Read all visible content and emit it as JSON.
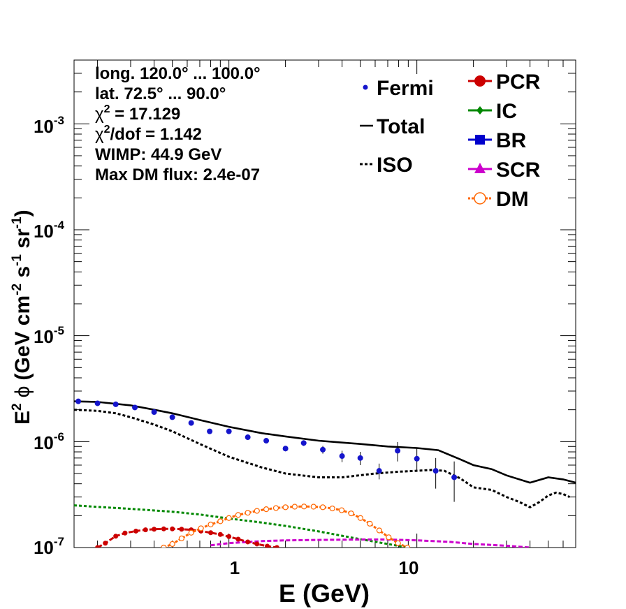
{
  "chart_data": {
    "type": "line",
    "xscale": "log",
    "yscale": "log",
    "xlim": [
      0.15,
      70
    ],
    "ylim": [
      1e-07,
      0.004
    ],
    "xlabel": "E (GeV)",
    "ylabel": {
      "base": "E",
      "base_sup": "2",
      "phi": "ϕ",
      "unit_open": "(GeV cm",
      "unit_sup1": "-2",
      "unit_s": " s",
      "unit_sup2": "-1",
      "unit_sr": " sr",
      "unit_sup3": "-1",
      "unit_close": ")"
    },
    "x_ticks": [
      {
        "value": 1,
        "label": "1"
      },
      {
        "value": 10,
        "label": "10"
      }
    ],
    "y_ticks": [
      {
        "value": 1e-07,
        "mantissa": "10",
        "exponent": "-7"
      },
      {
        "value": 1e-06,
        "mantissa": "10",
        "exponent": "-6"
      },
      {
        "value": 1e-05,
        "mantissa": "10",
        "exponent": "-5"
      },
      {
        "value": 0.0001,
        "mantissa": "10",
        "exponent": "-4"
      },
      {
        "value": 0.001,
        "mantissa": "10",
        "exponent": "-3"
      }
    ],
    "info": [
      {
        "text": "long. 120.0° ... 100.0°"
      },
      {
        "text": "lat. 72.5° ... 90.0°"
      },
      {
        "text": " = 17.129",
        "chi": "χ",
        "sup": "2"
      },
      {
        "text": "/dof = 1.142",
        "chi": "χ",
        "sup": "2"
      },
      {
        "text": "WIMP: 44.9 GeV"
      },
      {
        "text": "Max DM flux: 2.4e-07"
      }
    ],
    "legend": {
      "left": [
        {
          "key": "fermi",
          "label": "Fermi",
          "color": "#1515cc",
          "style": "point"
        },
        {
          "key": "total",
          "label": "Total",
          "color": "#000000",
          "style": "solid"
        },
        {
          "key": "iso",
          "label": "ISO",
          "color": "#000000",
          "style": "dotted"
        }
      ],
      "right": [
        {
          "key": "pcr",
          "label": "PCR",
          "color": "#cc0000",
          "marker": "circle"
        },
        {
          "key": "ic",
          "label": "IC",
          "color": "#008800",
          "marker": "diamond"
        },
        {
          "key": "br",
          "label": "BR",
          "color": "#0000cc",
          "marker": "square"
        },
        {
          "key": "scr",
          "label": "SCR",
          "color": "#cc00cc",
          "marker": "triangle"
        },
        {
          "key": "dm",
          "label": "DM",
          "color": "#ff6600",
          "marker": "open-circle"
        }
      ]
    },
    "fermi": {
      "name": "Fermi",
      "color": "#1515cc",
      "x": [
        0.158,
        0.2,
        0.25,
        0.316,
        0.4,
        0.5,
        0.63,
        0.79,
        1.0,
        1.26,
        1.58,
        2.0,
        2.5,
        3.16,
        4.0,
        5.0,
        6.3,
        7.9,
        10.0,
        12.6,
        15.8,
        20.0,
        25.1,
        31.6,
        39.8,
        50.1,
        63.1
      ],
      "y": [
        2.4e-06,
        2.3e-06,
        2.25e-06,
        2.1e-06,
        1.9e-06,
        1.7e-06,
        1.5e-06,
        1.25e-06,
        1.25e-06,
        1.1e-06,
        1.02e-06,
        8.6e-07,
        9.7e-07,
        8.4e-07,
        7.3e-07,
        7e-07,
        5.3e-07,
        8.2e-07,
        6.9e-07,
        5.3e-07,
        4.6e-07,
        null,
        null,
        null,
        null,
        null,
        null
      ],
      "yerr": [
        5e-08,
        5e-08,
        5e-08,
        5e-08,
        5e-08,
        5e-08,
        4e-08,
        4e-08,
        4e-08,
        4e-08,
        4e-08,
        5e-08,
        6e-08,
        7e-08,
        9e-08,
        1e-07,
        9e-08,
        1.7e-07,
        1.7e-07,
        1.7e-07,
        1.9e-07,
        null,
        null,
        null,
        null,
        null,
        null
      ]
    },
    "series": [
      {
        "key": "total",
        "name": "Total",
        "color": "#000000",
        "dash": "",
        "width": 2.6,
        "x": [
          0.15,
          0.2,
          0.3,
          0.4,
          0.5,
          0.7,
          1.0,
          1.5,
          2.0,
          3.0,
          4.0,
          5.0,
          7.0,
          10.0,
          13.0,
          17.0,
          20.0,
          25.0,
          30.0,
          40.0,
          50.0,
          60.0,
          70.0
        ],
        "y": [
          2.4e-06,
          2.37e-06,
          2.2e-06,
          2e-06,
          1.85e-06,
          1.6e-06,
          1.38e-06,
          1.2e-06,
          1.12e-06,
          1.02e-06,
          9.8e-07,
          9.5e-07,
          9e-07,
          8.7e-07,
          8.3e-07,
          6.8e-07,
          6e-07,
          5.5e-07,
          4.8e-07,
          4.1e-07,
          4.6e-07,
          4.4e-07,
          4.1e-07
        ]
      },
      {
        "key": "iso",
        "name": "ISO",
        "color": "#000000",
        "dash": "4,3",
        "width": 3,
        "x": [
          0.15,
          0.2,
          0.25,
          0.3,
          0.4,
          0.5,
          0.7,
          1.0,
          1.5,
          2.0,
          3.0,
          4.0,
          6.0,
          8.0,
          10.0,
          12.0,
          14.0,
          17.0,
          20.0,
          25.0,
          30.0,
          35.0,
          40.0,
          45.0,
          50.0,
          55.0,
          60.0,
          65.0
        ],
        "y": [
          2e-06,
          1.95e-06,
          1.85e-06,
          1.7e-06,
          1.45e-06,
          1.25e-06,
          9.5e-07,
          7.2e-07,
          5.7e-07,
          5e-07,
          4.6e-07,
          4.6e-07,
          5e-07,
          5.2e-07,
          5.3e-07,
          5.4e-07,
          5.3e-07,
          4.5e-07,
          3.7e-07,
          3.5e-07,
          3e-07,
          2.7e-07,
          2.4e-07,
          2.7e-07,
          3.1e-07,
          3.3e-07,
          3.2e-07,
          3e-07
        ]
      },
      {
        "key": "ic",
        "name": "IC",
        "color": "#008800",
        "dash": "4,3",
        "width": 3,
        "x": [
          0.15,
          0.2,
          0.3,
          0.5,
          0.7,
          1.0,
          1.5,
          2.0,
          3.0,
          5.0,
          7.0,
          9.0
        ],
        "y": [
          2.5e-07,
          2.42e-07,
          2.32e-07,
          2.18e-07,
          2.05e-07,
          1.88e-07,
          1.72e-07,
          1.6e-07,
          1.42e-07,
          1.2e-07,
          1.08e-07,
          1e-07
        ]
      },
      {
        "key": "scr",
        "name": "SCR",
        "color": "#cc00cc",
        "dash": "6,3",
        "width": 3,
        "x": [
          0.8,
          1.0,
          1.5,
          2.0,
          3.0,
          5.0,
          7.0,
          10.0,
          15.0,
          20.0,
          30.0,
          40.0
        ],
        "y": [
          1.05e-07,
          1.1e-07,
          1.15e-07,
          1.17e-07,
          1.18e-07,
          1.19e-07,
          1.19e-07,
          1.17e-07,
          1.13e-07,
          1.08e-07,
          1.04e-07,
          1e-07
        ]
      },
      {
        "key": "pcr",
        "name": "PCR",
        "color": "#cc0000",
        "dash": "7,3",
        "width": 3,
        "marker": "circle",
        "markerEvery": 1,
        "x": [
          0.2,
          0.22,
          0.25,
          0.28,
          0.32,
          0.36,
          0.4,
          0.45,
          0.5,
          0.56,
          0.63,
          0.71,
          0.8,
          0.9,
          1.0,
          1.12,
          1.26,
          1.41,
          1.6,
          1.8
        ],
        "y": [
          1e-07,
          1.1e-07,
          1.28e-07,
          1.37e-07,
          1.43e-07,
          1.47e-07,
          1.49e-07,
          1.5e-07,
          1.5e-07,
          1.49e-07,
          1.47e-07,
          1.43e-07,
          1.38e-07,
          1.33e-07,
          1.27e-07,
          1.2e-07,
          1.13e-07,
          1.08e-07,
          1.03e-07,
          1e-07
        ]
      },
      {
        "key": "dm",
        "name": "DM",
        "color": "#ff6600",
        "dash": "4,2",
        "width": 3,
        "marker": "open-circle",
        "markerEvery": 1,
        "x": [
          0.45,
          0.5,
          0.56,
          0.63,
          0.71,
          0.8,
          0.9,
          1.0,
          1.12,
          1.26,
          1.41,
          1.58,
          1.78,
          2.0,
          2.24,
          2.51,
          2.82,
          3.16,
          3.55,
          3.98,
          4.47,
          5.01,
          5.62,
          6.31,
          7.08,
          7.94,
          8.91
        ],
        "y": [
          1e-07,
          1.08e-07,
          1.22e-07,
          1.38e-07,
          1.52e-07,
          1.65e-07,
          1.77e-07,
          1.9e-07,
          2.03e-07,
          2.13e-07,
          2.22e-07,
          2.3e-07,
          2.36e-07,
          2.4e-07,
          2.43e-07,
          2.44e-07,
          2.43e-07,
          2.4e-07,
          2.34e-07,
          2.25e-07,
          2.1e-07,
          1.9e-07,
          1.68e-07,
          1.45e-07,
          1.25e-07,
          1.1e-07,
          1e-07
        ]
      }
    ]
  }
}
